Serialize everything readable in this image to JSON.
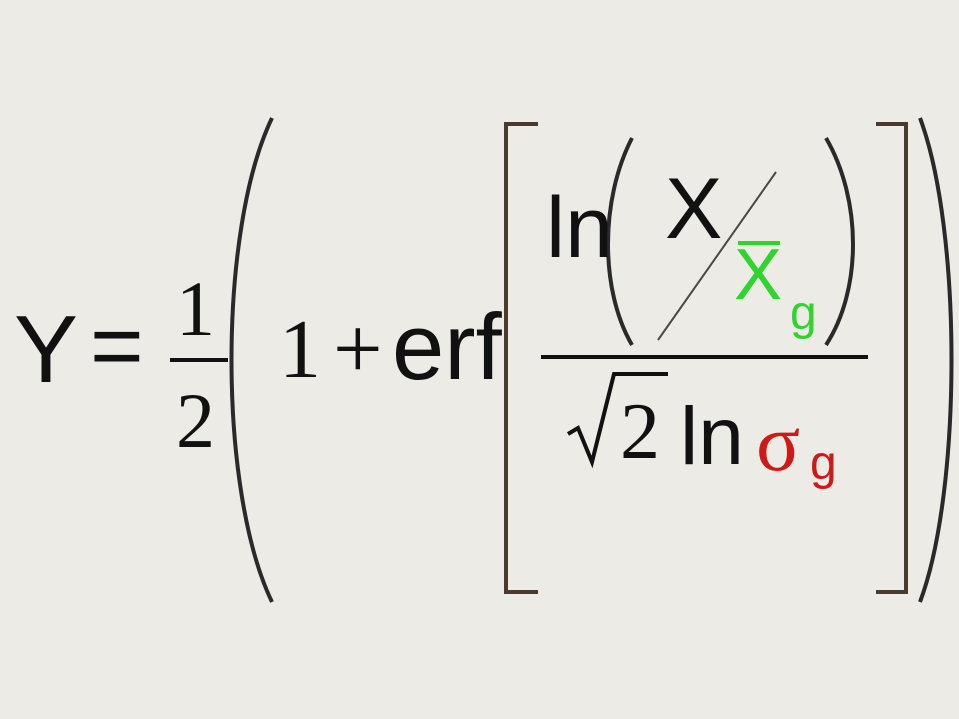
{
  "formula": {
    "lhs": "Y",
    "equals": "=",
    "half": {
      "numerator": "1",
      "denominator": "2"
    },
    "one": "1",
    "plus": "+",
    "erf": "erf",
    "ln_numerator": "ln",
    "x_var": "X",
    "xbar_var": "X",
    "xbar_sub": "g",
    "sqrt_arg": "2",
    "ln_denominator": "ln",
    "sigma": "σ",
    "sigma_sub": "g"
  },
  "colors": {
    "background": "#ecebe6",
    "text": "#111111",
    "xbar_green": "#2fd42f",
    "sigma_red": "#d01818",
    "bracket": "#4a3a30"
  }
}
